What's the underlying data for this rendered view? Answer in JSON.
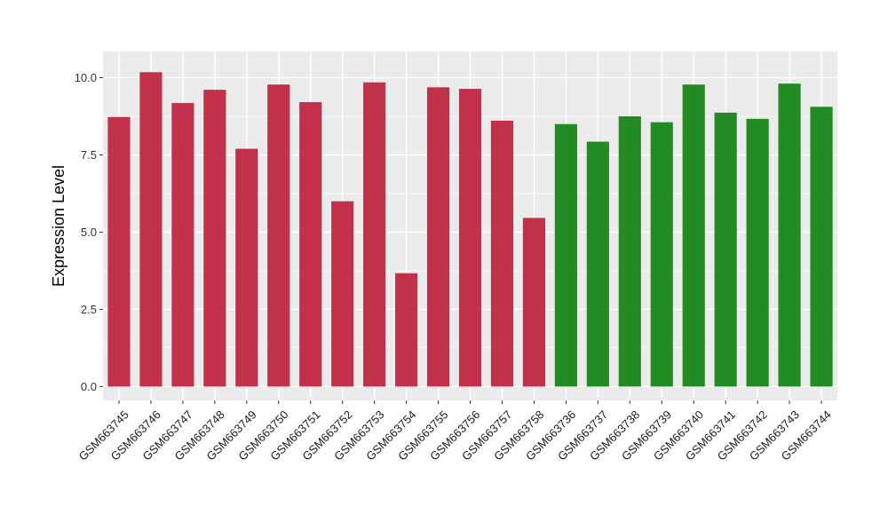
{
  "chart_data": {
    "type": "bar",
    "title": "",
    "xlabel": "",
    "ylabel": "Expression Level",
    "ylim": [
      -0.45,
      10.85
    ],
    "yticks": [
      0.0,
      2.5,
      5.0,
      7.5,
      10.0
    ],
    "ytick_labels": [
      "0.0",
      "2.5",
      "5.0",
      "7.5",
      "10.0"
    ],
    "grid": true,
    "legend": "none",
    "background_color": "#EBEBEB",
    "gridline_color": "#FFFFFF",
    "group_colors": {
      "group1": "#C3304A",
      "group2": "#238B24"
    },
    "categories": [
      "GSM663745",
      "GSM663746",
      "GSM663747",
      "GSM663748",
      "GSM663749",
      "GSM663750",
      "GSM663751",
      "GSM663752",
      "GSM663753",
      "GSM663754",
      "GSM663755",
      "GSM663756",
      "GSM663757",
      "GSM663758",
      "GSM663736",
      "GSM663737",
      "GSM663738",
      "GSM663739",
      "GSM663740",
      "GSM663741",
      "GSM663742",
      "GSM663743",
      "GSM663744"
    ],
    "values": [
      8.73,
      10.18,
      9.18,
      9.61,
      7.7,
      9.78,
      9.21,
      6.0,
      9.85,
      3.67,
      9.69,
      9.64,
      8.61,
      5.46,
      8.5,
      7.93,
      8.75,
      8.56,
      9.78,
      8.87,
      8.67,
      9.81,
      9.06
    ],
    "groups": [
      "group1",
      "group1",
      "group1",
      "group1",
      "group1",
      "group1",
      "group1",
      "group1",
      "group1",
      "group1",
      "group1",
      "group1",
      "group1",
      "group1",
      "group2",
      "group2",
      "group2",
      "group2",
      "group2",
      "group2",
      "group2",
      "group2",
      "group2"
    ]
  }
}
